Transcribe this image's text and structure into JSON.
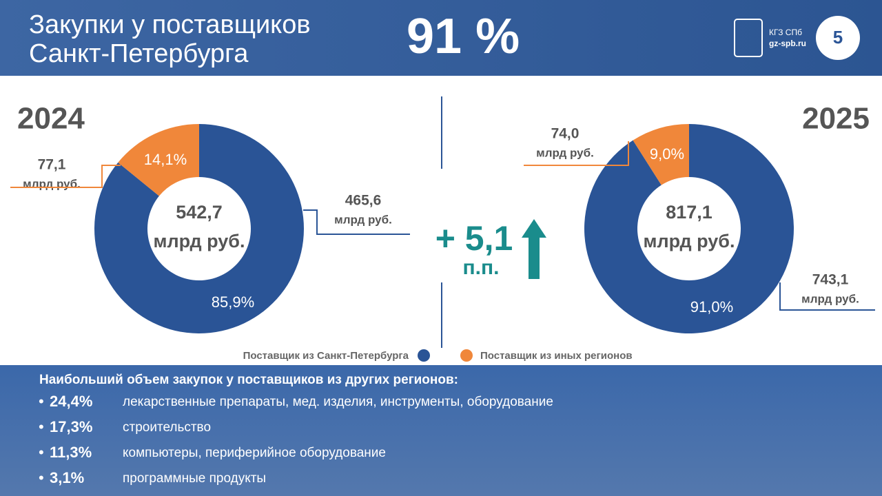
{
  "header": {
    "title_line1": "Закупки у поставщиков",
    "title_line2": "Санкт-Петербурга",
    "headline": "91 %",
    "logo_text": "КГЗ СПб",
    "site": "gz-spb.ru",
    "page": "5"
  },
  "chart_data": [
    {
      "type": "pie",
      "title": "2024",
      "center_value": "542,7",
      "center_unit": "млрд руб.",
      "values": [
        85.9,
        14.1
      ],
      "value_labels": [
        "85,9%",
        "14,1%"
      ],
      "colors": [
        "#2a5496",
        "#f0873a"
      ],
      "amounts": [
        "465,6",
        "77,1"
      ],
      "amount_unit": "млрд руб."
    },
    {
      "type": "pie",
      "title": "2025",
      "center_value": "817,1",
      "center_unit": "млрд руб.",
      "values": [
        91.0,
        9.0
      ],
      "value_labels": [
        "91,0%",
        "9,0%"
      ],
      "colors": [
        "#2a5496",
        "#f0873a"
      ],
      "amounts": [
        "743,1",
        "74,0"
      ],
      "amount_unit": "млрд руб."
    }
  ],
  "legend": {
    "labels": [
      "Поставщик из Санкт-Петербурга",
      "Поставщик из иных регионов"
    ],
    "colors": [
      "#2a5496",
      "#f0873a"
    ]
  },
  "change": {
    "value": "+ 5,1",
    "unit": "п.п."
  },
  "details": {
    "heading": "Наибольший объем закупок у поставщиков из других регионов:",
    "items": [
      {
        "value": "24,4%",
        "text": "лекарственные препараты, мед. изделия, инструменты, оборудование"
      },
      {
        "value": "17,3%",
        "text": "строительство"
      },
      {
        "value": "11,3%",
        "text": "компьютеры, периферийное оборудование"
      },
      {
        "value": "3,1%",
        "text": "программные продукты"
      }
    ]
  }
}
